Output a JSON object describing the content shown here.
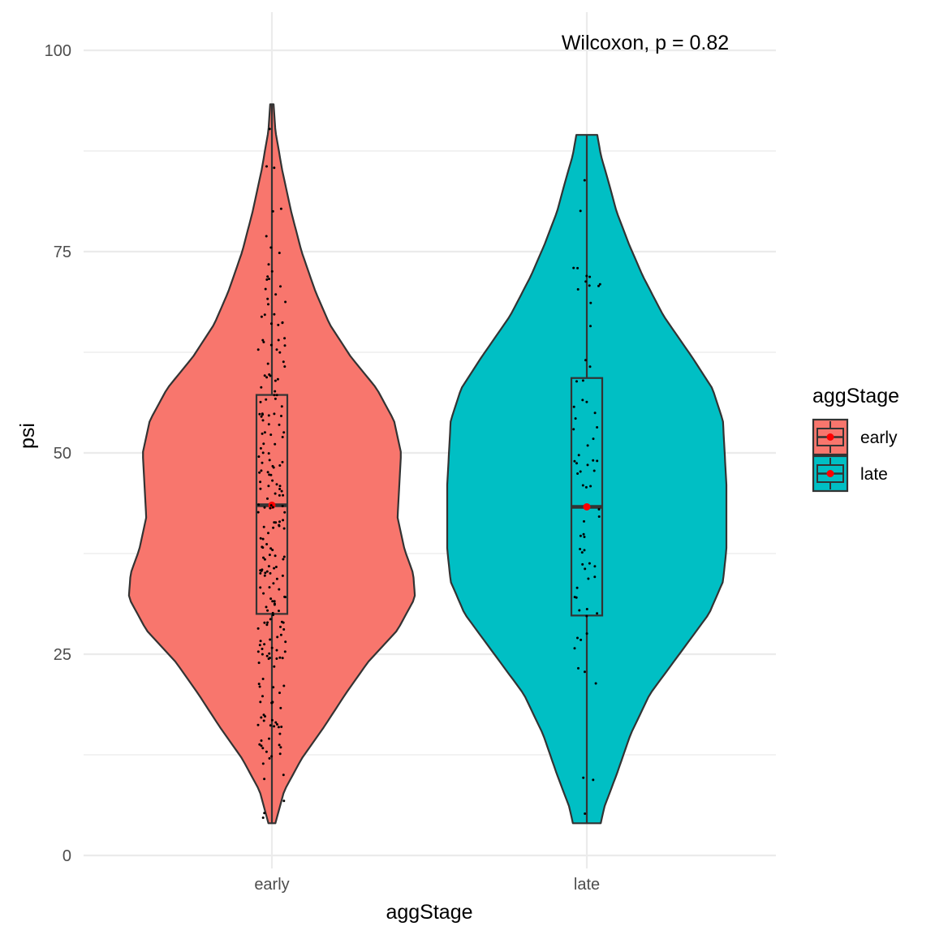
{
  "chart_data": {
    "type": "violin",
    "xlabel": "aggStage",
    "ylabel": "psi",
    "categories": [
      "early",
      "late"
    ],
    "ylim": [
      0,
      100
    ],
    "yticks": [
      0,
      25,
      50,
      75,
      100
    ],
    "grid": true,
    "annotation": "Wilcoxon, p = 0.82",
    "legend": {
      "title": "aggStage",
      "placement": "right",
      "entries": [
        {
          "label": "early",
          "color": "#F8766D"
        },
        {
          "label": "late",
          "color": "#00BFC4"
        }
      ]
    },
    "groups": [
      {
        "name": "early",
        "color": "#F8766D",
        "min": 4,
        "max": 93.3,
        "box": {
          "q1": 30,
          "median": 43.5,
          "q3": 57.2,
          "whisker_low": 4,
          "whisker_high": 93.3
        },
        "mean": 43.5,
        "density": [
          [
            4,
            0.02
          ],
          [
            8,
            0.07
          ],
          [
            12,
            0.17
          ],
          [
            16,
            0.3
          ],
          [
            20,
            0.42
          ],
          [
            24,
            0.55
          ],
          [
            28,
            0.72
          ],
          [
            32,
            0.82
          ],
          [
            35,
            0.81
          ],
          [
            38,
            0.76
          ],
          [
            42,
            0.72
          ],
          [
            46,
            0.73
          ],
          [
            50,
            0.74
          ],
          [
            54,
            0.7
          ],
          [
            58,
            0.6
          ],
          [
            62,
            0.45
          ],
          [
            66,
            0.33
          ],
          [
            70,
            0.25
          ],
          [
            75,
            0.17
          ],
          [
            80,
            0.11
          ],
          [
            85,
            0.06
          ],
          [
            90,
            0.02
          ],
          [
            93.3,
            0.01
          ]
        ]
      },
      {
        "name": "late",
        "color": "#00BFC4",
        "min": 4,
        "max": 89.5,
        "box": {
          "q1": 29.8,
          "median": 43.3,
          "q3": 59.3,
          "whisker_low": 4,
          "whisker_high": 89.5
        },
        "mean": 43.3,
        "density": [
          [
            4,
            0.08
          ],
          [
            6,
            0.1
          ],
          [
            10,
            0.17
          ],
          [
            15,
            0.25
          ],
          [
            20,
            0.36
          ],
          [
            25,
            0.53
          ],
          [
            30,
            0.7
          ],
          [
            34,
            0.78
          ],
          [
            38,
            0.8
          ],
          [
            42,
            0.8
          ],
          [
            46,
            0.8
          ],
          [
            50,
            0.79
          ],
          [
            54,
            0.78
          ],
          [
            58,
            0.72
          ],
          [
            62,
            0.6
          ],
          [
            67,
            0.44
          ],
          [
            72,
            0.32
          ],
          [
            76,
            0.24
          ],
          [
            80,
            0.17
          ],
          [
            84,
            0.12
          ],
          [
            87,
            0.08
          ],
          [
            89.5,
            0.06
          ]
        ]
      }
    ]
  }
}
